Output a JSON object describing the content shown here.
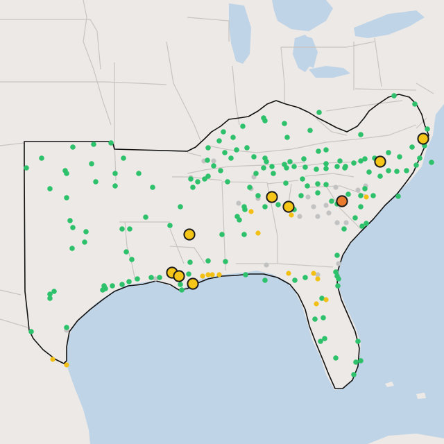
{
  "map": {
    "colors": {
      "land": "#ece9e6",
      "water": "#bfd4e6",
      "state_border": "#c9c4c0",
      "region_outline": "#111111",
      "site_ok": "#2ec16b",
      "site_inactive": "#c2c2c2",
      "site_small_warning": "#f2c014",
      "site_warning": "#f5c518",
      "site_alert": "#ea7a2e",
      "marker_stroke": "#1a1a1a"
    },
    "layers": [
      {
        "name": "monitoring-sites",
        "status_levels": [
          "ok",
          "inactive",
          "small-warning",
          "warning",
          "alert"
        ]
      }
    ]
  }
}
